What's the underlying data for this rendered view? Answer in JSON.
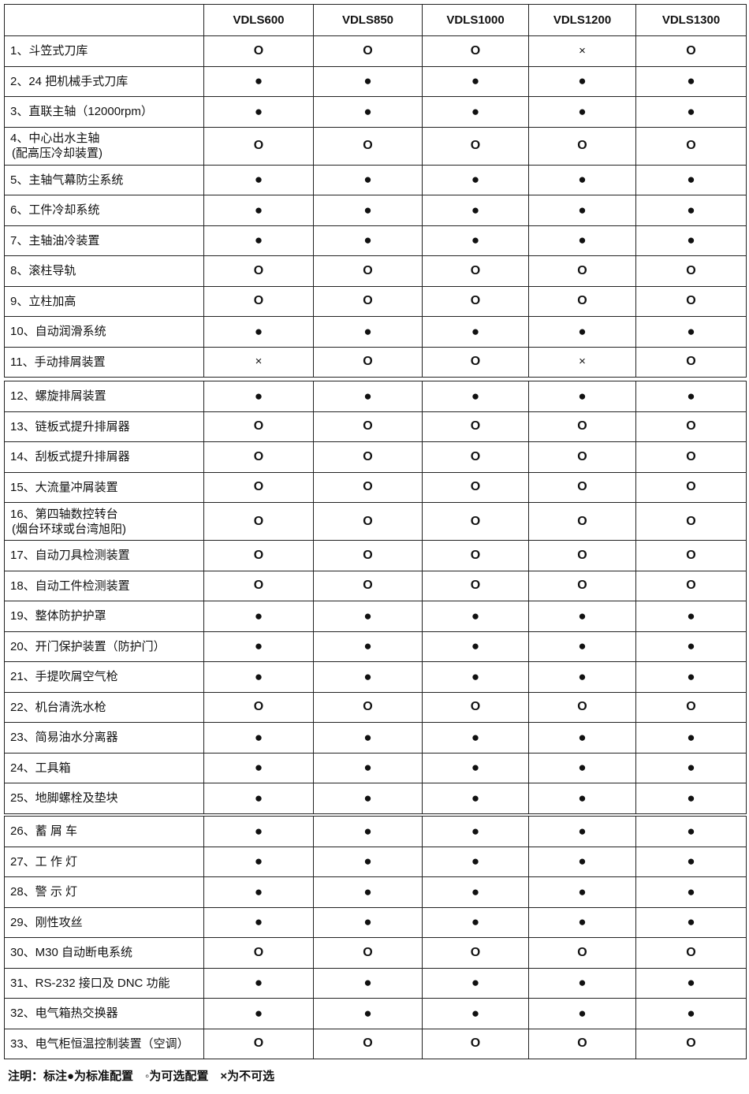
{
  "header": {
    "blank": "",
    "models": [
      "VDLS600",
      "VDLS850",
      "VDLS1000",
      "VDLS1200",
      "VDLS1300"
    ]
  },
  "symbols": {
    "S": "●",
    "O": "O",
    "X": "×"
  },
  "sections": [
    {
      "rows": [
        {
          "label": [
            "1、斗笠式刀库"
          ],
          "values": [
            "O",
            "O",
            "O",
            "X",
            "O"
          ]
        },
        {
          "label": [
            "2、24 把机械手式刀库"
          ],
          "values": [
            "S",
            "S",
            "S",
            "S",
            "S"
          ]
        },
        {
          "label": [
            "3、直联主轴（12000rpm）"
          ],
          "values": [
            "S",
            "S",
            "S",
            "S",
            "S"
          ]
        },
        {
          "label": [
            "4、中心出水主轴",
            "(配高压冷却装置)"
          ],
          "values": [
            "O",
            "O",
            "O",
            "O",
            "O"
          ]
        },
        {
          "label": [
            "5、主轴气幕防尘系统"
          ],
          "values": [
            "S",
            "S",
            "S",
            "S",
            "S"
          ]
        },
        {
          "label": [
            "6、工件冷却系统"
          ],
          "values": [
            "S",
            "S",
            "S",
            "S",
            "S"
          ]
        },
        {
          "label": [
            "7、主轴油冷装置"
          ],
          "values": [
            "S",
            "S",
            "S",
            "S",
            "S"
          ]
        },
        {
          "label": [
            "8、滚柱导轨"
          ],
          "values": [
            "O",
            "O",
            "O",
            "O",
            "O"
          ]
        },
        {
          "label": [
            "9、立柱加高"
          ],
          "values": [
            "O",
            "O",
            "O",
            "O",
            "O"
          ]
        },
        {
          "label": [
            "10、自动润滑系统"
          ],
          "values": [
            "S",
            "S",
            "S",
            "S",
            "S"
          ]
        },
        {
          "label": [
            "11、手动排屑装置"
          ],
          "values": [
            "X",
            "O",
            "O",
            "X",
            "O"
          ]
        }
      ]
    },
    {
      "rows": [
        {
          "label": [
            "12、螺旋排屑装置"
          ],
          "values": [
            "S",
            "S",
            "S",
            "S",
            "S"
          ]
        },
        {
          "label": [
            "13、链板式提升排屑器"
          ],
          "values": [
            "O",
            "O",
            "O",
            "O",
            "O"
          ]
        },
        {
          "label": [
            "14、刮板式提升排屑器"
          ],
          "values": [
            "O",
            "O",
            "O",
            "O",
            "O"
          ]
        },
        {
          "label": [
            "15、大流量冲屑装置"
          ],
          "values": [
            "O",
            "O",
            "O",
            "O",
            "O"
          ]
        },
        {
          "label": [
            "16、第四轴数控转台",
            "(烟台环球或台湾旭阳)"
          ],
          "values": [
            "O",
            "O",
            "O",
            "O",
            "O"
          ]
        },
        {
          "label": [
            "17、自动刀具检测装置"
          ],
          "values": [
            "O",
            "O",
            "O",
            "O",
            "O"
          ]
        },
        {
          "label": [
            "18、自动工件检测装置"
          ],
          "values": [
            "O",
            "O",
            "O",
            "O",
            "O"
          ]
        },
        {
          "label": [
            "19、整体防护护罩"
          ],
          "values": [
            "S",
            "S",
            "S",
            "S",
            "S"
          ]
        },
        {
          "label": [
            "20、开门保护装置（防护门）"
          ],
          "values": [
            "S",
            "S",
            "S",
            "S",
            "S"
          ]
        },
        {
          "label": [
            "21、手提吹屑空气枪"
          ],
          "values": [
            "S",
            "S",
            "S",
            "S",
            "S"
          ]
        },
        {
          "label": [
            "22、机台清洗水枪"
          ],
          "values": [
            "O",
            "O",
            "O",
            "O",
            "O"
          ]
        },
        {
          "label": [
            "23、简易油水分离器"
          ],
          "values": [
            "S",
            "S",
            "S",
            "S",
            "S"
          ]
        },
        {
          "label": [
            "24、工具箱"
          ],
          "values": [
            "S",
            "S",
            "S",
            "S",
            "S"
          ]
        },
        {
          "label": [
            "25、地脚螺栓及垫块"
          ],
          "values": [
            "S",
            "S",
            "S",
            "S",
            "S"
          ]
        }
      ]
    },
    {
      "rows": [
        {
          "label": [
            "26、蓄 屑 车"
          ],
          "values": [
            "S",
            "S",
            "S",
            "S",
            "S"
          ]
        },
        {
          "label": [
            "27、工 作 灯"
          ],
          "values": [
            "S",
            "S",
            "S",
            "S",
            "S"
          ]
        },
        {
          "label": [
            "28、警 示 灯"
          ],
          "values": [
            "S",
            "S",
            "S",
            "S",
            "S"
          ]
        },
        {
          "label": [
            "29、刚性攻丝"
          ],
          "values": [
            "S",
            "S",
            "S",
            "S",
            "S"
          ]
        },
        {
          "label": [
            "30、M30 自动断电系统"
          ],
          "values": [
            "O",
            "O",
            "O",
            "O",
            "O"
          ]
        },
        {
          "label": [
            "31、RS-232 接口及 DNC 功能"
          ],
          "values": [
            "S",
            "S",
            "S",
            "S",
            "S"
          ]
        },
        {
          "label": [
            "32、电气箱热交换器"
          ],
          "values": [
            "S",
            "S",
            "S",
            "S",
            "S"
          ]
        },
        {
          "label": [
            "33、电气柜恒温控制装置（空调）"
          ],
          "values": [
            "O",
            "O",
            "O",
            "O",
            "O"
          ]
        }
      ]
    }
  ],
  "note": "注明：标注●为标准配置　◦为可选配置　×为不可选"
}
